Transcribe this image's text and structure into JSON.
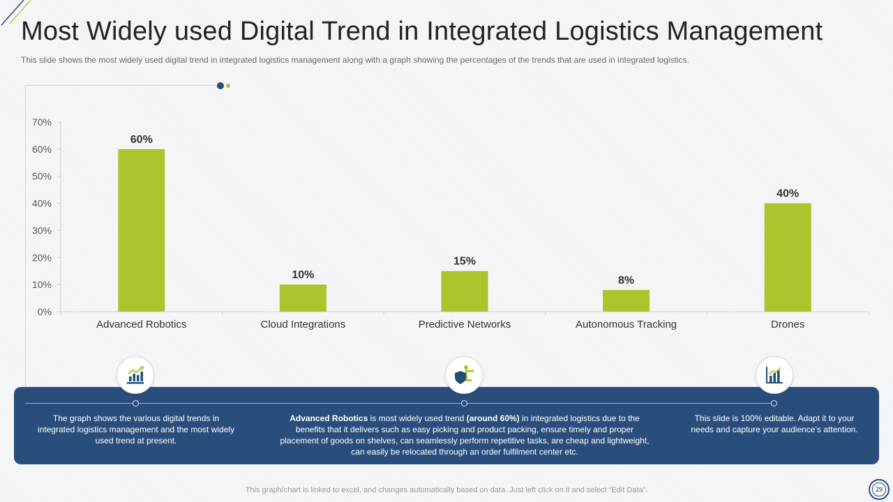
{
  "slide": {
    "title": "Most Widely used Digital Trend in Integrated Logistics Management",
    "subtitle": "This slide shows the most widely used digital trend in integrated logistics management along with a graph showing the percentages of the trends that are used in integrated logistics.",
    "footer": "This graph/chart is linked to excel, and changes automatically based on data. Just left click on it and select “Edit Data”.",
    "page_number": "29"
  },
  "colors": {
    "bar": "#a9c62c",
    "panel": "#2a4e7c",
    "accent_dark": "#1f4e79"
  },
  "notes": {
    "left": "The graph shows the various digital trends in integrated logistics management and the most widely used trend at present.",
    "middle_bold1": "Advanced Robotics",
    "middle_text1": " is most widely used trend ",
    "middle_bold2": "(around 60%)",
    "middle_text2": " in integrated logistics due to the benefits that it delivers such as easy picking and product packing, ensure timely and proper placement of goods on shelves, can seamlessly perform repetitive tasks, are cheap and lightweight, can easily be relocated through an order fulfilment center etc.",
    "right": "This slide is 100% editable. Adapt it to your needs and capture your audience’s attention."
  },
  "icons": {
    "left": "growth-chart-icon",
    "middle": "robot-shield-icon",
    "right": "bar-chart-icon"
  },
  "chart_data": {
    "type": "bar",
    "title": "",
    "xlabel": "",
    "ylabel": "",
    "categories": [
      "Advanced Robotics",
      "Cloud Integrations",
      "Predictive Networks",
      "Autonomous Tracking",
      "Drones"
    ],
    "values": [
      60,
      10,
      15,
      8,
      40
    ],
    "value_labels": [
      "60%",
      "10%",
      "15%",
      "8%",
      "40%"
    ],
    "yticks": [
      "0%",
      "10%",
      "20%",
      "30%",
      "40%",
      "50%",
      "60%",
      "70%"
    ],
    "ylim": [
      0,
      70
    ],
    "grid": false,
    "legend": "none"
  }
}
